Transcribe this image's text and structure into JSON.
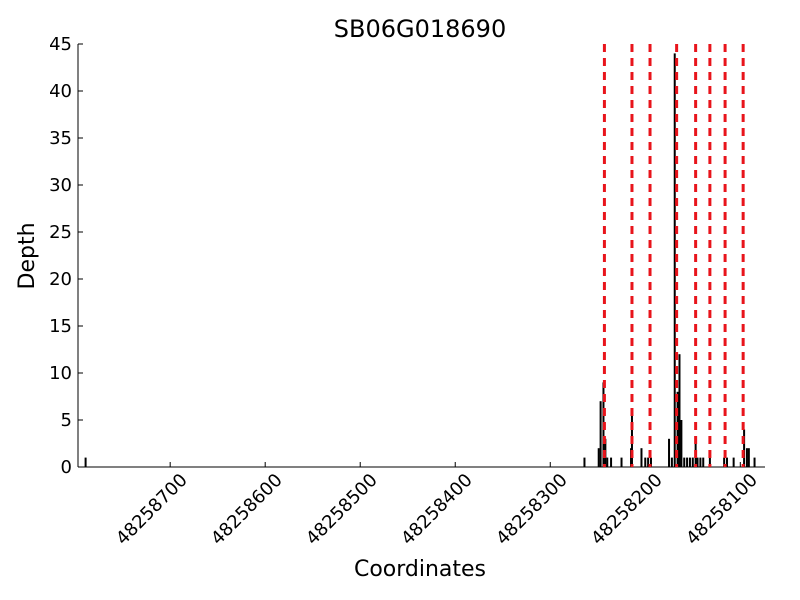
{
  "chart_data": {
    "type": "bar",
    "title": "SB06G018690",
    "xlabel": "Coordinates",
    "ylabel": "Depth",
    "x": [
      48258789,
      48258264,
      48258249,
      48258247,
      48258244,
      48258242,
      48258240,
      48258236,
      48258225,
      48258215,
      48258214,
      48258204,
      48258200,
      48258197,
      48258194,
      48258175,
      48258172,
      48258169,
      48258166,
      48258164,
      48258162,
      48258159,
      48258156,
      48258153,
      48258150,
      48258147,
      48258145,
      48258142,
      48258139,
      48258132,
      48258117,
      48258114,
      48258107,
      48258096,
      48258093,
      48258091,
      48258085
    ],
    "values": [
      1,
      1,
      2,
      7,
      9,
      3,
      1,
      1,
      1,
      2,
      6,
      2,
      1,
      1,
      1,
      3,
      1,
      44,
      8,
      12,
      5,
      1,
      1,
      1,
      1,
      3,
      1,
      1,
      1,
      1,
      1,
      1,
      1,
      4,
      2,
      2,
      1
    ],
    "color": "#000000",
    "vlines": [
      48258243,
      48258214,
      48258195,
      48258167,
      48258147,
      48258132,
      48258116,
      48258097
    ],
    "vline_color": "#e8141b",
    "xlim": [
      48258797,
      48258074
    ],
    "ylim": [
      0,
      45
    ],
    "xticks": [
      48258700,
      48258600,
      48258500,
      48258400,
      48258300,
      48258200,
      48258100
    ],
    "yticks": [
      0,
      5,
      10,
      15,
      20,
      25,
      30,
      35,
      40,
      45
    ]
  }
}
